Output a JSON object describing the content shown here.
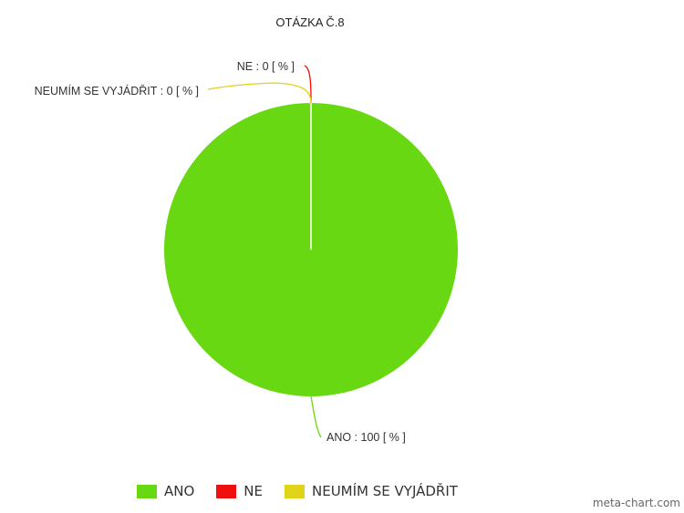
{
  "chart_data": {
    "type": "pie",
    "title": "OTÁZKA Č.8",
    "categories": [
      "ANO",
      "NE",
      "NEUMÍM SE VYJÁDŘIT"
    ],
    "values": [
      100,
      0,
      0
    ],
    "unit": "[ % ]",
    "colors": [
      "#68d812",
      "#f00f0f",
      "#e0d41a"
    ],
    "data_labels": [
      "ANO : 100 [ % ]",
      "NE : 0 [ % ]",
      "NEUMÍM SE VYJÁDŘIT : 0 [ % ]"
    ],
    "legend_position": "bottom"
  },
  "legend": {
    "items": [
      {
        "label": "ANO",
        "color": "#68d812"
      },
      {
        "label": "NE",
        "color": "#f00f0f"
      },
      {
        "label": "NEUMÍM SE VYJÁDŘIT",
        "color": "#e0d41a"
      }
    ]
  },
  "credit": "meta-chart.com"
}
